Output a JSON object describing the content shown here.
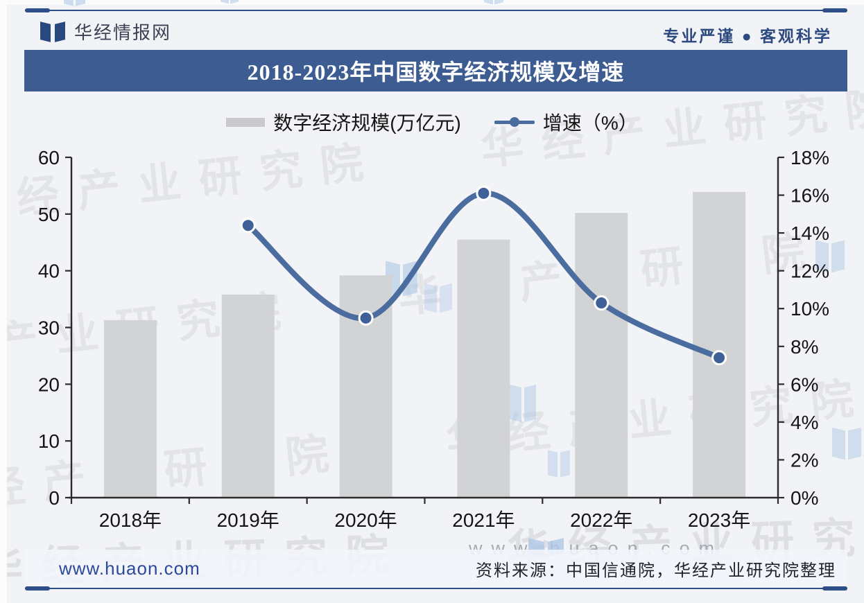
{
  "header": {
    "brand": "华经情报网",
    "tagline": "专业严谨 ● 客观科学"
  },
  "title_bar": {
    "title": "2018-2023年中国数字经济规模及增速",
    "bg_color": "#3c5c92"
  },
  "legend": {
    "bar_label": "数字经济规模(万亿元)",
    "line_label": "增速（%）"
  },
  "chart_data": {
    "type": "bar",
    "title": "2018-2023年中国数字经济规模及增速",
    "categories": [
      "2018年",
      "2019年",
      "2020年",
      "2021年",
      "2022年",
      "2023年"
    ],
    "series": [
      {
        "name": "数字经济规模(万亿元)",
        "type": "bar",
        "axis": "left",
        "color": "#d2d3d5",
        "values": [
          31.3,
          35.8,
          39.2,
          45.5,
          50.2,
          53.9
        ]
      },
      {
        "name": "增速（%）",
        "type": "line",
        "axis": "right",
        "color": "#4a6c9e",
        "marker_color": "#3f6098",
        "values": [
          null,
          14.4,
          9.5,
          16.1,
          10.3,
          7.4
        ]
      }
    ],
    "left_axis": {
      "min": 0,
      "max": 60,
      "step": 10,
      "labels": [
        "0",
        "10",
        "20",
        "30",
        "40",
        "50",
        "60"
      ]
    },
    "right_axis": {
      "min": 0,
      "max": 18,
      "step": 2,
      "labels": [
        "0%",
        "2%",
        "4%",
        "6%",
        "8%",
        "10%",
        "12%",
        "14%",
        "16%",
        "18%"
      ]
    },
    "grid": false,
    "legend_position": "top"
  },
  "footer": {
    "website": "www.huaon.com",
    "source": "资料来源：中国信通院，华经产业研究院整理"
  },
  "watermark": {
    "text": "华经产业研究院",
    "url_text": "www.huaon.com"
  },
  "colors": {
    "accent_navy": "#2e4e86",
    "bar_gray": "#d2d3d5",
    "line_blue": "#4a6c9e",
    "page_bg": "#f2f3f6"
  }
}
